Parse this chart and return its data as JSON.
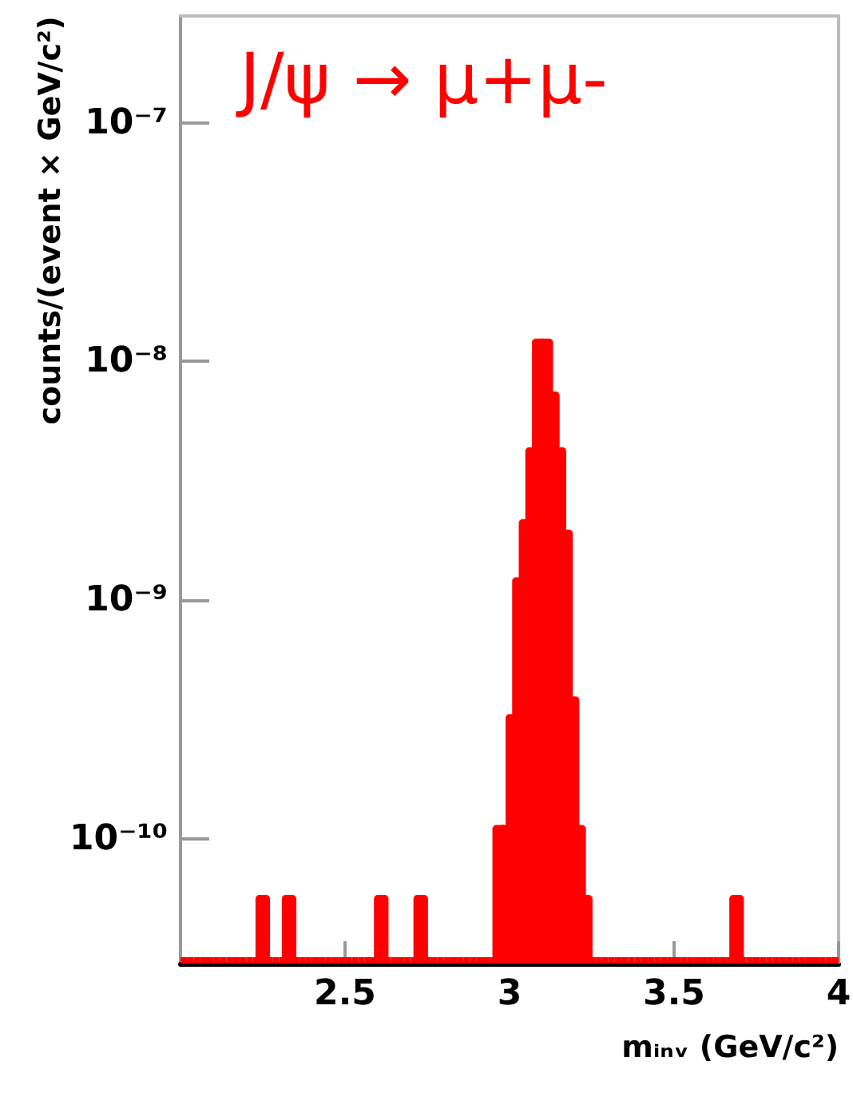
{
  "chart_data": {
    "type": "histogram",
    "xlabel": "mᵢₙᵥ (GeV/c²)",
    "ylabel": "counts/(event × GeV/c²)",
    "annotations": [
      "J/ψ → μ+μ-"
    ],
    "bins": [
      2,
      2.02,
      2.04,
      2.06,
      2.08,
      2.1,
      2.12,
      2.14,
      2.16,
      2.18,
      2.2,
      2.22,
      2.24,
      2.26,
      2.28,
      2.3,
      2.32,
      2.34,
      2.36,
      2.38,
      2.4,
      2.42,
      2.44,
      2.46,
      2.48,
      2.5,
      2.52,
      2.54,
      2.56,
      2.58,
      2.6,
      2.62,
      2.64,
      2.66,
      2.68,
      2.7,
      2.72,
      2.74,
      2.76,
      2.78,
      2.8,
      2.82,
      2.84,
      2.86,
      2.88,
      2.9,
      2.92,
      2.94,
      2.96,
      2.98,
      3,
      3.02,
      3.04,
      3.06,
      3.08,
      3.1,
      3.12,
      3.14,
      3.16,
      3.18,
      3.2,
      3.22,
      3.24,
      3.26,
      3.28,
      3.3,
      3.32,
      3.34,
      3.36,
      3.38,
      3.4,
      3.42,
      3.44,
      3.46,
      3.48,
      3.5,
      3.52,
      3.54,
      3.56,
      3.58,
      3.6,
      3.62,
      3.64,
      3.66,
      3.68,
      3.7,
      3.72,
      3.74,
      3.76,
      3.78,
      3.8,
      3.82,
      3.84,
      3.86,
      3.88,
      3.9,
      3.92,
      3.94,
      3.96,
      3.98,
      4
    ],
    "values": [
      null,
      null,
      null,
      null,
      null,
      null,
      null,
      null,
      null,
      null,
      null,
      null,
      5.6e-11,
      null,
      null,
      null,
      5.6e-11,
      null,
      null,
      null,
      null,
      null,
      null,
      null,
      null,
      null,
      null,
      null,
      null,
      null,
      5.6e-11,
      null,
      null,
      null,
      null,
      null,
      5.6e-11,
      null,
      null,
      null,
      null,
      null,
      null,
      null,
      null,
      null,
      null,
      null,
      1.1e-10,
      1.1e-10,
      3.2e-10,
      1.2e-09,
      2.1e-09,
      4.2e-09,
      1.2e-08,
      1.2e-08,
      7.2e-09,
      4.2e-09,
      1.9e-09,
      3.8e-10,
      1.1e-10,
      5.6e-11,
      null,
      null,
      null,
      null,
      null,
      null,
      null,
      null,
      null,
      null,
      null,
      null,
      null,
      null,
      null,
      null,
      null,
      null,
      null,
      null,
      null,
      null,
      5.6e-11,
      null,
      null,
      null,
      null,
      null,
      null,
      null,
      null,
      null,
      null,
      null,
      null,
      null,
      null,
      null
    ],
    "color": "#ff0000",
    "log": "y",
    "xlim": [
      2,
      4
    ],
    "xticks": [
      2.5,
      3,
      3.5,
      4
    ],
    "ylim": [
      3e-11,
      2.8e-07
    ],
    "yticks": [
      {
        "value": 1e-10,
        "label": "10⁻¹⁰"
      },
      {
        "value": 1e-09,
        "label": "10⁻⁹"
      },
      {
        "value": 1e-08,
        "label": "10⁻⁸"
      },
      {
        "value": 1e-07,
        "label": "10⁻⁷"
      }
    ]
  }
}
